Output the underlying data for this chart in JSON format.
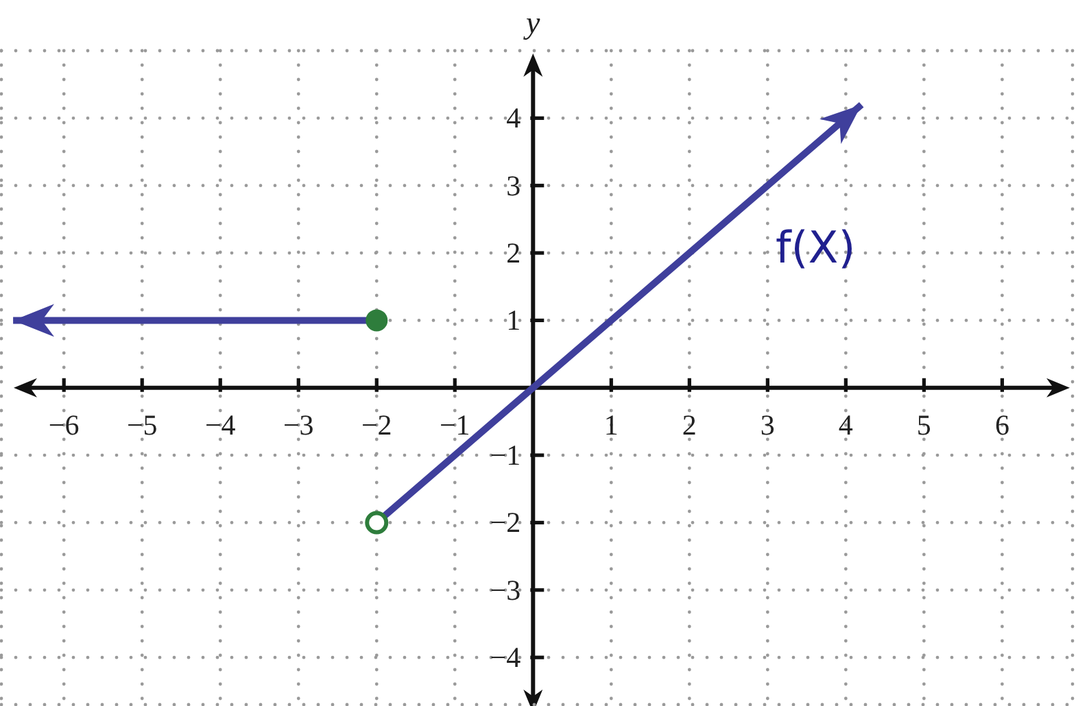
{
  "chart_data": {
    "type": "line",
    "ylabel": "y",
    "xlim": [
      -6.8,
      6.9
    ],
    "ylim": [
      -4.7,
      5.0
    ],
    "xticks": [
      {
        "value": -6,
        "label": "−6"
      },
      {
        "value": -5,
        "label": "−5"
      },
      {
        "value": -4,
        "label": "−4"
      },
      {
        "value": -3,
        "label": "−3"
      },
      {
        "value": -2,
        "label": "−2"
      },
      {
        "value": -1,
        "label": "−1"
      },
      1,
      2,
      3,
      4,
      5,
      6
    ],
    "yticks": [
      {
        "value": -4,
        "label": "−4"
      },
      {
        "value": -3,
        "label": "−3"
      },
      {
        "value": -2,
        "label": "−2"
      },
      {
        "value": -1,
        "label": "−1"
      },
      1,
      2,
      3,
      4
    ],
    "grid": true,
    "line_style": "solid",
    "series": [
      {
        "x": [
          -6.65,
          -2
        ],
        "values": [
          1,
          1
        ],
        "color": "#3f3f9c"
      },
      {
        "name": "f(X)",
        "x": [
          -2,
          4.2
        ],
        "values": [
          -2,
          4.2
        ],
        "color": "#3f3f9c"
      },
      {
        "type": "scatter",
        "x": [
          -2
        ],
        "values": [
          1
        ],
        "color": "#2e7d3c",
        "marker": "circle"
      },
      {
        "type": "scatter",
        "x": [
          -2
        ],
        "values": [
          -2
        ],
        "color": "#2e7d3c",
        "marker": "circle-open"
      }
    ]
  }
}
